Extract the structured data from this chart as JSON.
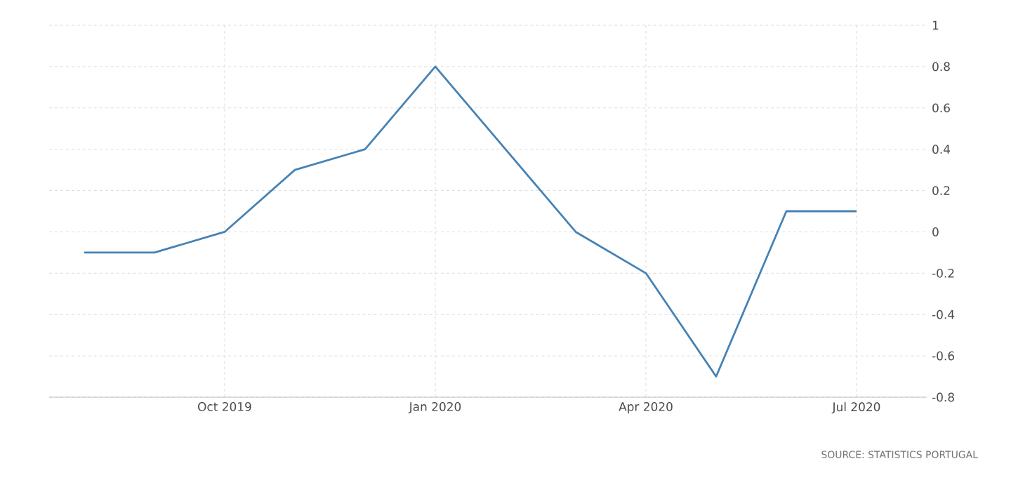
{
  "chart_data": {
    "type": "line",
    "categories": [
      null,
      null,
      "Oct 2019",
      null,
      null,
      "Jan 2020",
      null,
      null,
      "Apr 2020",
      null,
      null,
      "Jul 2020"
    ],
    "series": [
      {
        "color": "#4682b4",
        "values": [
          -0.1,
          -0.1,
          0,
          0.3,
          0.4,
          0.8,
          0.4,
          0,
          -0.2,
          -0.7,
          0.1,
          0.1
        ]
      }
    ],
    "ylim": [
      -0.8,
      1
    ],
    "yticks": [
      -0.8,
      -0.6,
      -0.4,
      -0.2,
      0,
      0.2,
      0.4,
      0.6,
      0.8,
      1
    ],
    "grid": true,
    "marker": "none",
    "line_style": "solid",
    "annotations": [
      "SOURCE: STATISTICS PORTUGAL"
    ]
  }
}
